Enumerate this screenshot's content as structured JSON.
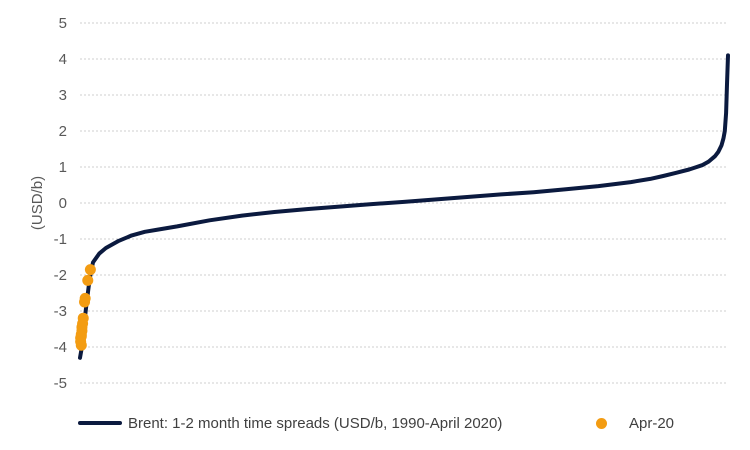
{
  "chart_data": {
    "type": "line",
    "title": "",
    "xlabel": "",
    "ylabel": "(USD/b)",
    "ylim": [
      -5,
      5
    ],
    "yticks": [
      "5",
      "4",
      "3",
      "2",
      "1",
      "0",
      "-1",
      "-2",
      "-3",
      "-4",
      "-5"
    ],
    "ytick_values": [
      5,
      4,
      3,
      2,
      1,
      0,
      -1,
      -2,
      -3,
      -4,
      -5
    ],
    "grid": true,
    "legend_position": "bottom",
    "series": [
      {
        "name": "Brent: 1-2 month time spreads (USD/b, 1990-April 2020)",
        "kind": "line",
        "color": "#0b1a3f",
        "x": [
          0,
          0.3,
          0.5,
          1,
          1.5,
          2,
          3,
          4,
          5,
          6,
          8,
          10,
          12,
          15,
          20,
          25,
          30,
          35,
          40,
          45,
          50,
          55,
          60,
          65,
          70,
          75,
          80,
          85,
          88,
          90,
          92,
          94,
          95,
          96,
          97,
          98,
          98.5,
          99,
          99.3,
          99.5,
          99.7,
          99.85,
          100
        ],
        "y": [
          -4.3,
          -4.0,
          -3.6,
          -2.8,
          -2.1,
          -1.65,
          -1.4,
          -1.25,
          -1.15,
          -1.05,
          -0.9,
          -0.8,
          -0.74,
          -0.65,
          -0.48,
          -0.35,
          -0.25,
          -0.17,
          -0.1,
          -0.03,
          0.03,
          0.1,
          0.17,
          0.24,
          0.3,
          0.38,
          0.47,
          0.58,
          0.67,
          0.75,
          0.84,
          0.93,
          0.99,
          1.05,
          1.15,
          1.3,
          1.42,
          1.6,
          1.8,
          2.0,
          2.5,
          3.3,
          4.1
        ]
      },
      {
        "name": "Apr-20",
        "kind": "scatter",
        "color": "#f39c12",
        "x": [
          1.6,
          1.2,
          0.8,
          0.7,
          0.5,
          0.4,
          0.3,
          0.3,
          0.2,
          0.2,
          0.1,
          0.1,
          0.2
        ],
        "y": [
          -1.85,
          -2.15,
          -2.65,
          -2.75,
          -3.2,
          -3.35,
          -3.45,
          -3.55,
          -3.65,
          -3.7,
          -3.75,
          -3.85,
          -3.95
        ]
      }
    ]
  }
}
